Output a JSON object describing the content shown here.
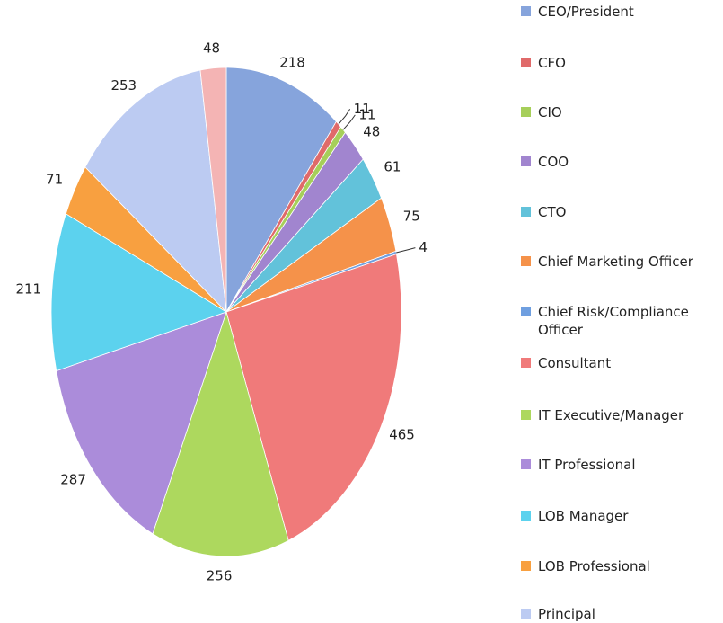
{
  "chart_data": {
    "type": "pie",
    "categories": [
      "CEO/President",
      "CFO",
      "CIO",
      "COO",
      "CTO",
      "Chief Marketing Officer",
      "Chief Risk/Compliance Officer",
      "Consultant",
      "IT Executive/Manager",
      "IT Professional",
      "LOB Manager",
      "LOB Professional",
      "Principal",
      null
    ],
    "values": [
      218,
      11,
      11,
      48,
      61,
      75,
      4,
      465,
      256,
      287,
      211,
      71,
      253,
      48
    ],
    "colors": [
      "#86a4dc",
      "#e06a6a",
      "#a6cf5a",
      "#a185cf",
      "#62c2da",
      "#f5924a",
      "#6f9fe0",
      "#f07a7a",
      "#add85e",
      "#ab8cda",
      "#5cd2ee",
      "#f8a040",
      "#bccbf2",
      "#f4b4b4"
    ]
  }
}
